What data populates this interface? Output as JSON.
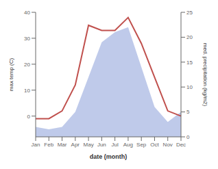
{
  "chart_data": {
    "type": "line",
    "categories": [
      "Jan",
      "Feb",
      "Mar",
      "Apr",
      "May",
      "Jun",
      "Jul",
      "Aug",
      "Sep",
      "Oct",
      "Nov",
      "Dec"
    ],
    "series": [
      {
        "type": "area",
        "axis": "y2",
        "color": "#b8c4e8",
        "values": [
          2,
          1.5,
          2,
          5,
          12,
          19,
          21,
          22,
          14,
          6,
          3,
          5
        ]
      },
      {
        "type": "line",
        "color": "#c0504d",
        "values": [
          -1,
          -1,
          2,
          12,
          35,
          33,
          33,
          38,
          28,
          15,
          2,
          0
        ]
      }
    ],
    "xlabel": "date (month)",
    "ylabel": "max temp (C)",
    "y2label": "med. precipitation (kg/m2)",
    "ylim": [
      -8,
      40
    ],
    "yticks": [
      0,
      10,
      20,
      30,
      40
    ],
    "y2lim": [
      0,
      25
    ],
    "y2ticks": [
      0,
      5,
      10,
      15,
      20,
      25
    ],
    "grid": false
  }
}
